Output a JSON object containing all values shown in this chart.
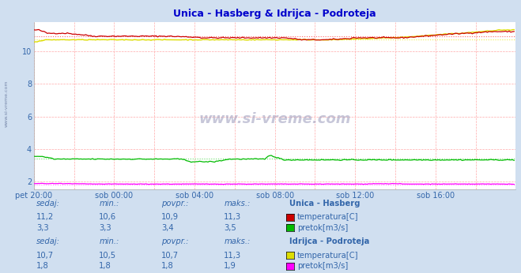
{
  "title": "Unica - Hasberg & Idrijca - Podroteja",
  "title_color": "#0000cc",
  "bg_color": "#d0dff0",
  "plot_bg_color": "#ffffff",
  "grid_color": "#ffaaaa",
  "xlim": [
    0,
    288
  ],
  "ylim": [
    1.5,
    11.8
  ],
  "yticks": [
    2,
    4,
    6,
    8,
    10
  ],
  "xtick_labels": [
    "pet 20:00",
    "sob 00:00",
    "sob 04:00",
    "sob 08:00",
    "sob 12:00",
    "sob 16:00"
  ],
  "xtick_positions": [
    0,
    48,
    96,
    144,
    192,
    240
  ],
  "unica_temp_avg": 10.9,
  "unica_temp_min": "10,6",
  "unica_temp_max": "11,3",
  "unica_pretok_avg": 3.4,
  "unica_pretok_min": "3,3",
  "unica_pretok_max": "3,5",
  "idrijca_temp_avg": 10.7,
  "idrijca_temp_min": "10,5",
  "idrijca_temp_max": "11,3",
  "idrijca_pretok_avg": 1.8,
  "idrijca_pretok_min": "1,8",
  "idrijca_pretok_max": "1,9",
  "color_unica_temp": "#cc0000",
  "color_unica_pretok": "#00bb00",
  "color_idrijca_temp": "#dddd00",
  "color_idrijca_pretok": "#ff00ff",
  "color_avg_unica_temp": "#ff6666",
  "color_avg_unica_pretok": "#66dd66",
  "color_avg_idrijca_temp": "#eeee44",
  "color_avg_idrijca_pretok": "#ff88ff",
  "text_color": "#3366aa",
  "watermark": "www.si-vreme.com",
  "stat_headers": [
    "sedaj:",
    "min.:",
    "povpr.:",
    "maks.:"
  ],
  "unica_sedaj_temp": "11,2",
  "unica_sedaj_pretok": "3,3",
  "idrijca_sedaj_temp": "10,7",
  "idrijca_sedaj_pretok": "1,8",
  "unica_temp_avg_str": "10,9",
  "unica_pretok_avg_str": "3,4",
  "idrijca_temp_avg_str": "10,7",
  "idrijca_pretok_avg_str": "1,8"
}
